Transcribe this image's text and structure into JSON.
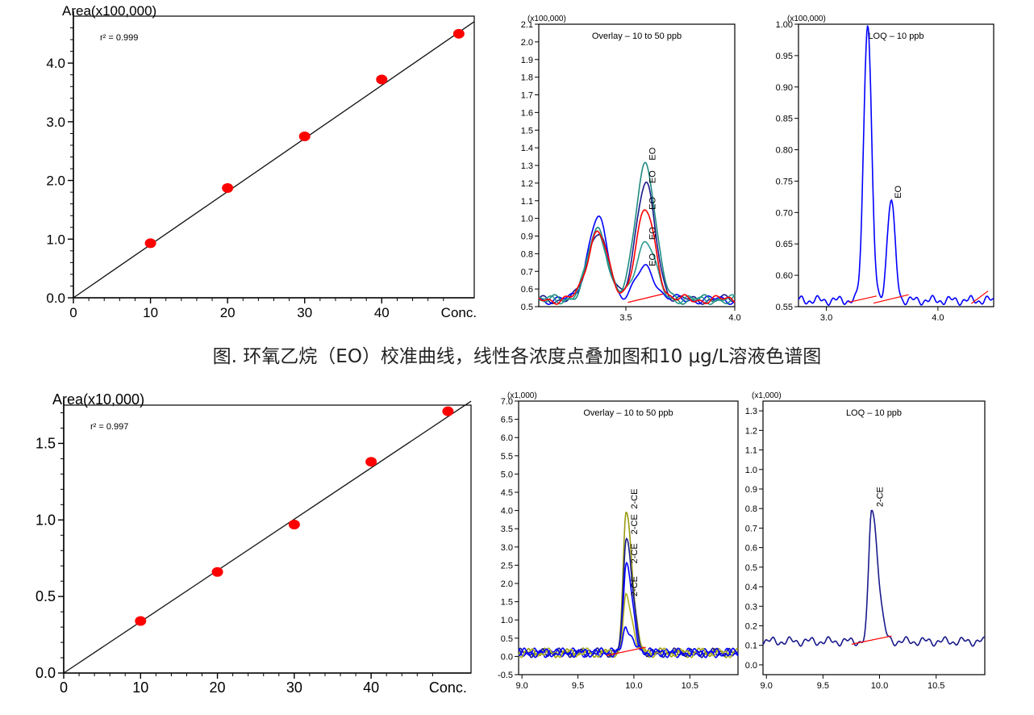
{
  "caption": "图. 环氧乙烷（EO）校准曲线，线性各浓度点叠加图和10 μg/L溶液色谱图",
  "chart_data": [
    {
      "id": "eo-calibration",
      "type": "scatter",
      "ylabel": "Area(x100,000)",
      "xlabel": "Conc.",
      "annotation": "r² = 0.999",
      "xlim": [
        0,
        52
      ],
      "ylim": [
        0,
        4.8
      ],
      "xticks": [
        0,
        10,
        20,
        30,
        40
      ],
      "yticks": [
        0.0,
        1.0,
        2.0,
        3.0,
        4.0
      ],
      "ytick_labels": [
        "0.0",
        "1.0",
        "2.0",
        "3.0",
        "4.0"
      ],
      "x": [
        10,
        20,
        30,
        40,
        50
      ],
      "y": [
        0.93,
        1.87,
        2.75,
        3.72,
        4.5
      ],
      "fit": {
        "slope": 0.0905,
        "intercept": 0.0
      },
      "colors": {
        "points": "#ff0000",
        "line": "#111111"
      }
    },
    {
      "id": "eo-overlay",
      "type": "line",
      "title": "Overlay – 10 to  50 ppb",
      "yscale_label": "(x100,000)",
      "xlim": [
        3.1,
        4.0
      ],
      "ylim": [
        0.5,
        2.1
      ],
      "xticks": [
        3.5,
        4.0
      ],
      "yticks": [
        0.5,
        0.6,
        0.7,
        0.8,
        0.9,
        1.0,
        1.1,
        1.2,
        1.3,
        1.4,
        1.5,
        1.6,
        1.7,
        1.8,
        1.9,
        2.0,
        2.1
      ],
      "ytick_labels": [
        "0.5",
        "0.6",
        "0.7",
        "0.8",
        "0.9",
        "1.0",
        "1.1",
        "1.2",
        "1.3",
        "1.4",
        "1.5",
        "1.6",
        "1.7",
        "1.8",
        "1.9",
        "2.0",
        "2.1"
      ],
      "peak_label": "EO",
      "series": [
        {
          "color": "#1a1a8c",
          "peaks": [
            [
              3.37,
              0.93
            ],
            [
              3.59,
              1.19
            ]
          ]
        },
        {
          "color": "#0000ff",
          "peaks": [
            [
              3.37,
              1.0
            ],
            [
              3.59,
              0.72
            ]
          ]
        },
        {
          "color": "#1f8a80",
          "peaks": [
            [
              3.37,
              0.93
            ],
            [
              3.59,
              1.32
            ]
          ]
        },
        {
          "color": "#2a9a90",
          "peaks": [
            [
              3.37,
              0.93
            ],
            [
              3.59,
              0.87
            ]
          ]
        },
        {
          "color": "#ff0000",
          "peaks": [
            [
              3.37,
              0.93
            ],
            [
              3.59,
              1.04
            ]
          ]
        }
      ],
      "peak_label_positions": [
        1.32,
        1.19,
        1.04,
        0.87,
        0.72
      ]
    },
    {
      "id": "eo-loq",
      "type": "line",
      "title": "LOQ – 10 ppb",
      "yscale_label": "(x100,000)",
      "xlim": [
        2.75,
        4.5
      ],
      "ylim": [
        0.55,
        1.0
      ],
      "xticks": [
        3.0,
        4.0
      ],
      "yticks": [
        0.55,
        0.6,
        0.65,
        0.7,
        0.75,
        0.8,
        0.85,
        0.9,
        0.95,
        1.0
      ],
      "ytick_labels": [
        "0.55",
        "0.60",
        "0.65",
        "0.70",
        "0.75",
        "0.80",
        "0.85",
        "0.90",
        "0.95",
        "1.00"
      ],
      "peak_label": "EO",
      "series": [
        {
          "color": "#0000ff",
          "peaks": [
            [
              3.37,
              1.005
            ],
            [
              3.58,
              0.72
            ]
          ]
        }
      ]
    },
    {
      "id": "2ce-calibration",
      "type": "scatter",
      "ylabel": "Area(x10,000)",
      "xlabel": "Conc.",
      "annotation": "r² = 0.997",
      "xlim": [
        0,
        53
      ],
      "ylim": [
        0,
        1.75
      ],
      "xticks": [
        0,
        10,
        20,
        30,
        40
      ],
      "yticks": [
        0.0,
        0.5,
        1.0,
        1.5
      ],
      "ytick_labels": [
        "0.0",
        "0.5",
        "1.0",
        "1.5"
      ],
      "x": [
        10,
        20,
        30,
        40,
        50
      ],
      "y": [
        0.34,
        0.66,
        0.97,
        1.38,
        1.71
      ],
      "fit": {
        "slope": 0.0335,
        "intercept": 0.0
      },
      "colors": {
        "points": "#ff0000",
        "line": "#111111"
      }
    },
    {
      "id": "2ce-overlay",
      "type": "line",
      "title": "Overlay – 10 to 50 ppb",
      "yscale_label": "(x1,000)",
      "xlim": [
        8.97,
        10.93
      ],
      "ylim": [
        -0.5,
        7.0
      ],
      "xticks": [
        9.0,
        9.5,
        10.0,
        10.5
      ],
      "yticks": [
        -0.5,
        0.0,
        0.5,
        1.0,
        1.5,
        2.0,
        2.5,
        3.0,
        3.5,
        4.0,
        4.5,
        5.0,
        5.5,
        6.0,
        6.5,
        7.0
      ],
      "ytick_labels": [
        "-0.5",
        "0.0",
        "0.5",
        "1.0",
        "1.5",
        "2.0",
        "2.5",
        "3.0",
        "3.5",
        "4.0",
        "4.5",
        "5.0",
        "5.5",
        "6.0",
        "6.5",
        "7.0"
      ],
      "peak_label": "2-CE",
      "series": [
        {
          "color": "#9a9a10",
          "peaks": [
            [
              9.93,
              4.0
            ]
          ]
        },
        {
          "color": "#1a1a8c",
          "peaks": [
            [
              9.93,
              3.3
            ]
          ]
        },
        {
          "color": "#0000ff",
          "peaks": [
            [
              9.93,
              2.5
            ]
          ]
        },
        {
          "color": "#b0b020",
          "peaks": [
            [
              9.93,
              1.6
            ]
          ]
        },
        {
          "color": "#0000ff",
          "peaks": [
            [
              9.93,
              0.8
            ]
          ]
        }
      ],
      "peak_label_positions": [
        4.0,
        3.3,
        2.5,
        1.6
      ]
    },
    {
      "id": "2ce-loq",
      "type": "line",
      "title": "LOQ – 10 ppb",
      "yscale_label": "(x1,000)",
      "xlim": [
        8.97,
        10.93
      ],
      "ylim": [
        -0.05,
        1.35
      ],
      "xticks": [
        9.0,
        9.5,
        10.0,
        10.5
      ],
      "yticks": [
        0.0,
        0.1,
        0.2,
        0.3,
        0.4,
        0.5,
        0.6,
        0.7,
        0.8,
        0.9,
        1.0,
        1.1,
        1.2,
        1.3
      ],
      "ytick_labels": [
        "0.0",
        "0.1",
        "0.2",
        "0.3",
        "0.4",
        "0.5",
        "0.6",
        "0.7",
        "0.8",
        "0.9",
        "1.0",
        "1.1",
        "1.2",
        "1.3"
      ],
      "peak_label": "2-CE",
      "series": [
        {
          "color": "#1a1a8c",
          "peaks": [
            [
              9.93,
              0.8
            ]
          ]
        }
      ]
    }
  ]
}
